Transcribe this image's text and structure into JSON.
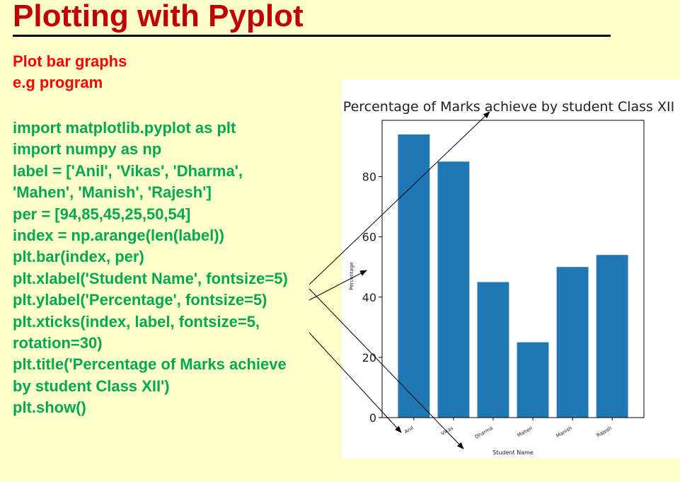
{
  "slide": {
    "title": "Plotting with Pyplot",
    "subtitle1": "Plot bar graphs",
    "subtitle2": "e.g program",
    "code_lines": [
      "import matplotlib.pyplot as plt",
      "import numpy as np",
      "label = ['Anil', 'Vikas', 'Dharma',",
      "'Mahen', 'Manish', 'Rajesh']",
      "per = [94,85,45,25,50,54]",
      "index = np.arange(len(label))",
      "plt.bar(index, per)",
      "plt.xlabel('Student Name', fontsize=5)",
      "plt.ylabel('Percentage', fontsize=5)",
      "plt.xticks(index, label, fontsize=5,",
      "rotation=30)",
      "plt.title('Percentage of Marks achieve",
      "by student Class XII')",
      "plt.show()"
    ],
    "colors": {
      "background": "#ffffcc",
      "title": "#c00000",
      "subtitle": "#ff0000",
      "code": "#00a84f",
      "bar": "#1f77b4"
    }
  },
  "chart_data": {
    "type": "bar",
    "title": "Percentage of Marks achieve by student Class XII",
    "xlabel": "Student Name",
    "ylabel": "Percentage",
    "categories": [
      "Anil",
      "Vikas",
      "Dharma",
      "Mahen",
      "Manish",
      "Rajesh"
    ],
    "values": [
      94,
      85,
      45,
      25,
      50,
      54
    ],
    "ylim": [
      0,
      98.7
    ],
    "yticks": [
      0,
      20,
      40,
      60,
      80
    ],
    "grid": false,
    "tick_rotation": 30
  }
}
